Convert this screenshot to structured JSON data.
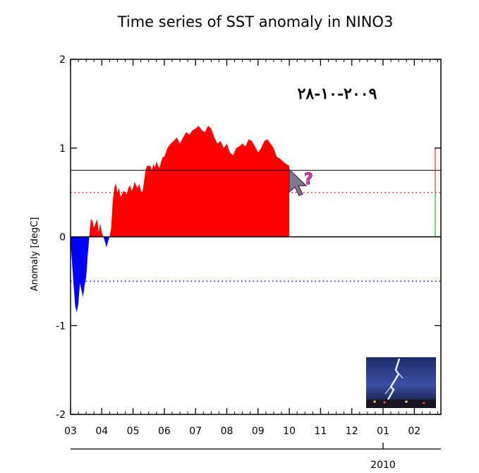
{
  "chart_data": {
    "type": "area",
    "title": "Time series of SST anomaly in NINO3",
    "ylabel": "Anomaly [degC]",
    "xlabel": "",
    "ylim": [
      -2,
      2
    ],
    "y_ticks": [
      "2",
      "1",
      "0",
      "-1",
      "-2"
    ],
    "x_tick_labels": [
      "03",
      "04",
      "05",
      "06",
      "07",
      "08",
      "09",
      "10",
      "11",
      "12",
      "01",
      "02"
    ],
    "year_label": "2010",
    "date_annotation": "٢٠٠٩-١٠-٢٨",
    "grid": false,
    "reference_lines": [
      {
        "name": "current",
        "y": 0.75,
        "color": "#000000",
        "style": "solid"
      },
      {
        "name": "el-nino-threshold",
        "y": 0.5,
        "color": "#ff0000",
        "style": "dotted"
      },
      {
        "name": "la-nina-threshold",
        "y": -0.5,
        "color": "#0000ff",
        "style": "dotted"
      }
    ],
    "colors": {
      "positive": "#ff0000",
      "negative": "#0000ff"
    },
    "series": [
      {
        "x": [
          0.0,
          0.05,
          0.1,
          0.15,
          0.2,
          0.25,
          0.3,
          0.35,
          0.4,
          0.45,
          0.5,
          0.55,
          0.6,
          0.65,
          0.7,
          0.75,
          0.8,
          0.85,
          0.9,
          0.95,
          1.0,
          1.05,
          1.1,
          1.15,
          1.2,
          1.25,
          1.3,
          1.35,
          1.4,
          1.45,
          1.5,
          1.55,
          1.6,
          1.65,
          1.7,
          1.75,
          1.8,
          1.85,
          1.9,
          1.95,
          2.0,
          2.05,
          2.1,
          2.15,
          2.2,
          2.25,
          2.3,
          2.35,
          2.4,
          2.45,
          2.5,
          2.55,
          2.6,
          2.65,
          2.7,
          2.75,
          2.8,
          2.85,
          2.9,
          2.95,
          3.0,
          3.1,
          3.2,
          3.3,
          3.4,
          3.5,
          3.6,
          3.7,
          3.8,
          3.9,
          4.0,
          4.1,
          4.2,
          4.3,
          4.4,
          4.5,
          4.6,
          4.7,
          4.8,
          4.9,
          5.0,
          5.1,
          5.2,
          5.3,
          5.4,
          5.5,
          5.6,
          5.7,
          5.8,
          5.9,
          6.0,
          6.1,
          6.2,
          6.3,
          6.4,
          6.5,
          6.6,
          6.7,
          6.8,
          6.9,
          7.0
        ],
        "values": [
          -0.05,
          -0.3,
          -0.55,
          -0.78,
          -0.85,
          -0.75,
          -0.52,
          -0.6,
          -0.68,
          -0.55,
          -0.45,
          -0.2,
          0.0,
          0.2,
          0.18,
          0.1,
          0.15,
          0.2,
          0.05,
          0.15,
          0.05,
          0.0,
          -0.05,
          -0.12,
          -0.05,
          0.0,
          0.1,
          0.4,
          0.55,
          0.6,
          0.5,
          0.55,
          0.45,
          0.48,
          0.52,
          0.5,
          0.48,
          0.55,
          0.58,
          0.52,
          0.55,
          0.62,
          0.58,
          0.55,
          0.6,
          0.52,
          0.5,
          0.62,
          0.75,
          0.8,
          0.8,
          0.8,
          0.75,
          0.82,
          0.78,
          0.85,
          0.8,
          0.78,
          0.85,
          0.9,
          0.9,
          1.0,
          1.05,
          1.08,
          1.12,
          1.05,
          1.12,
          1.18,
          1.15,
          1.2,
          1.22,
          1.25,
          1.2,
          1.18,
          1.25,
          1.22,
          1.12,
          1.05,
          1.08,
          1.0,
          1.05,
          0.95,
          0.92,
          1.0,
          1.02,
          1.05,
          1.02,
          1.1,
          1.08,
          1.02,
          0.95,
          1.0,
          1.08,
          1.1,
          1.05,
          1.0,
          0.9,
          0.88,
          0.85,
          0.82,
          0.8
        ]
      }
    ]
  }
}
